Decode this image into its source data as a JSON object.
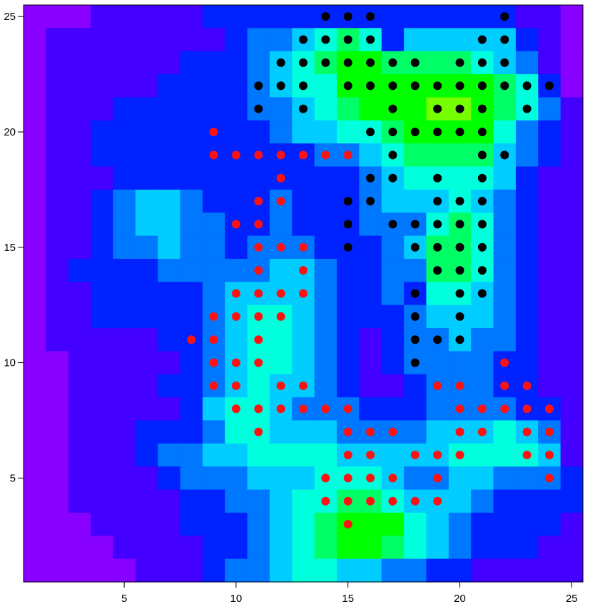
{
  "chart_data": {
    "type": "heatmap",
    "title": "",
    "xlabel": "",
    "ylabel": "",
    "xlim": [
      0.5,
      25.5
    ],
    "ylim": [
      0.5,
      25.5
    ],
    "x_ticks": [
      5,
      10,
      15,
      20,
      25
    ],
    "y_ticks": [
      5,
      10,
      15,
      20,
      25
    ],
    "x_tick_labels": [
      "5",
      "10",
      "15",
      "20",
      "25"
    ],
    "y_tick_labels": [
      "5",
      "10",
      "15",
      "20",
      "25"
    ],
    "colormap": [
      "#bb00ff",
      "#8800ff",
      "#4400ff",
      "#0022ff",
      "#0077ff",
      "#00ccff",
      "#00ffdd",
      "#00ff66",
      "#00ff00",
      "#77ff00"
    ],
    "grid": false,
    "series": [
      {
        "color": "#000000",
        "marker": "circle",
        "points": [
          [
            14,
            25
          ],
          [
            15,
            25
          ],
          [
            16,
            25
          ],
          [
            22,
            25
          ],
          [
            13,
            24
          ],
          [
            14,
            24
          ],
          [
            15,
            24
          ],
          [
            16,
            24
          ],
          [
            21,
            24
          ],
          [
            22,
            24
          ],
          [
            12,
            23
          ],
          [
            13,
            23
          ],
          [
            14,
            23
          ],
          [
            15,
            23
          ],
          [
            16,
            23
          ],
          [
            17,
            23
          ],
          [
            18,
            23
          ],
          [
            20,
            23
          ],
          [
            21,
            23
          ],
          [
            22,
            23
          ],
          [
            11,
            22
          ],
          [
            12,
            22
          ],
          [
            13,
            22
          ],
          [
            15,
            22
          ],
          [
            16,
            22
          ],
          [
            17,
            22
          ],
          [
            18,
            22
          ],
          [
            19,
            22
          ],
          [
            20,
            22
          ],
          [
            21,
            22
          ],
          [
            22,
            22
          ],
          [
            23,
            22
          ],
          [
            24,
            22
          ],
          [
            11,
            21
          ],
          [
            13,
            21
          ],
          [
            17,
            21
          ],
          [
            19,
            21
          ],
          [
            20,
            21
          ],
          [
            21,
            21
          ],
          [
            23,
            21
          ],
          [
            16,
            20
          ],
          [
            17,
            20
          ],
          [
            18,
            20
          ],
          [
            19,
            20
          ],
          [
            20,
            20
          ],
          [
            21,
            20
          ],
          [
            17,
            19
          ],
          [
            21,
            19
          ],
          [
            22,
            19
          ],
          [
            16,
            18
          ],
          [
            17,
            18
          ],
          [
            19,
            18
          ],
          [
            21,
            18
          ],
          [
            15,
            17
          ],
          [
            16,
            17
          ],
          [
            19,
            17
          ],
          [
            20,
            17
          ],
          [
            21,
            17
          ],
          [
            15,
            16
          ],
          [
            17,
            16
          ],
          [
            18,
            16
          ],
          [
            19,
            16
          ],
          [
            20,
            16
          ],
          [
            21,
            16
          ],
          [
            15,
            15
          ],
          [
            18,
            15
          ],
          [
            19,
            15
          ],
          [
            20,
            15
          ],
          [
            21,
            15
          ],
          [
            19,
            14
          ],
          [
            20,
            14
          ],
          [
            21,
            14
          ],
          [
            18,
            13
          ],
          [
            20,
            13
          ],
          [
            21,
            13
          ],
          [
            18,
            12
          ],
          [
            20,
            12
          ],
          [
            18,
            11
          ],
          [
            19,
            11
          ],
          [
            20,
            11
          ],
          [
            18,
            10
          ]
        ]
      },
      {
        "color": "#ff1111",
        "marker": "circle",
        "points": [
          [
            9,
            20
          ],
          [
            9,
            19
          ],
          [
            10,
            19
          ],
          [
            11,
            19
          ],
          [
            12,
            19
          ],
          [
            13,
            19
          ],
          [
            14,
            19
          ],
          [
            15,
            19
          ],
          [
            12,
            18
          ],
          [
            11,
            17
          ],
          [
            12,
            17
          ],
          [
            10,
            16
          ],
          [
            11,
            16
          ],
          [
            11,
            15
          ],
          [
            12,
            15
          ],
          [
            13,
            15
          ],
          [
            11,
            14
          ],
          [
            13,
            14
          ],
          [
            10,
            13
          ],
          [
            11,
            13
          ],
          [
            12,
            13
          ],
          [
            13,
            13
          ],
          [
            9,
            12
          ],
          [
            10,
            12
          ],
          [
            11,
            12
          ],
          [
            12,
            12
          ],
          [
            8,
            11
          ],
          [
            9,
            11
          ],
          [
            11,
            11
          ],
          [
            9,
            10
          ],
          [
            10,
            10
          ],
          [
            11,
            10
          ],
          [
            22,
            10
          ],
          [
            9,
            9
          ],
          [
            10,
            9
          ],
          [
            12,
            9
          ],
          [
            13,
            9
          ],
          [
            19,
            9
          ],
          [
            20,
            9
          ],
          [
            22,
            9
          ],
          [
            23,
            9
          ],
          [
            10,
            8
          ],
          [
            11,
            8
          ],
          [
            12,
            8
          ],
          [
            13,
            8
          ],
          [
            14,
            8
          ],
          [
            15,
            8
          ],
          [
            20,
            8
          ],
          [
            21,
            8
          ],
          [
            22,
            8
          ],
          [
            23,
            8
          ],
          [
            24,
            8
          ],
          [
            11,
            7
          ],
          [
            15,
            7
          ],
          [
            16,
            7
          ],
          [
            17,
            7
          ],
          [
            20,
            7
          ],
          [
            21,
            7
          ],
          [
            23,
            7
          ],
          [
            24,
            7
          ],
          [
            15,
            6
          ],
          [
            16,
            6
          ],
          [
            18,
            6
          ],
          [
            19,
            6
          ],
          [
            20,
            6
          ],
          [
            23,
            6
          ],
          [
            24,
            6
          ],
          [
            14,
            5
          ],
          [
            15,
            5
          ],
          [
            16,
            5
          ],
          [
            17,
            5
          ],
          [
            19,
            5
          ],
          [
            24,
            5
          ],
          [
            14,
            4
          ],
          [
            15,
            4
          ],
          [
            16,
            4
          ],
          [
            17,
            4
          ],
          [
            18,
            4
          ],
          [
            19,
            4
          ],
          [
            15,
            3
          ]
        ]
      }
    ],
    "heatmap_rows_top_to_bottom": [
      [
        1,
        1,
        1,
        2,
        2,
        2,
        2,
        2,
        3,
        3,
        3,
        3,
        3,
        3,
        3,
        3,
        3,
        3,
        3,
        3,
        3,
        3,
        2,
        2,
        1
      ],
      [
        1,
        2,
        2,
        2,
        2,
        2,
        2,
        2,
        2,
        3,
        4,
        4,
        5,
        6,
        7,
        6,
        3,
        5,
        5,
        5,
        5,
        5,
        3,
        2,
        1
      ],
      [
        1,
        2,
        2,
        2,
        2,
        2,
        2,
        3,
        3,
        3,
        4,
        5,
        6,
        7,
        8,
        8,
        7,
        7,
        7,
        7,
        6,
        5,
        4,
        2,
        1
      ],
      [
        1,
        2,
        2,
        2,
        2,
        2,
        3,
        3,
        3,
        3,
        4,
        5,
        6,
        6,
        8,
        8,
        8,
        8,
        8,
        8,
        8,
        7,
        6,
        3,
        1
      ],
      [
        1,
        2,
        2,
        2,
        3,
        3,
        3,
        3,
        3,
        3,
        4,
        4,
        5,
        6,
        7,
        8,
        8,
        8,
        9,
        9,
        8,
        7,
        6,
        4,
        2
      ],
      [
        1,
        2,
        2,
        3,
        3,
        3,
        3,
        3,
        3,
        3,
        3,
        4,
        5,
        5,
        6,
        6,
        7,
        8,
        8,
        8,
        8,
        6,
        4,
        3,
        2
      ],
      [
        1,
        2,
        2,
        3,
        3,
        3,
        3,
        3,
        3,
        3,
        3,
        3,
        3,
        4,
        4,
        5,
        6,
        7,
        7,
        7,
        7,
        5,
        4,
        3,
        2
      ],
      [
        1,
        2,
        2,
        2,
        3,
        3,
        3,
        3,
        3,
        3,
        3,
        3,
        3,
        3,
        3,
        4,
        5,
        6,
        6,
        6,
        6,
        5,
        3,
        2,
        2
      ],
      [
        1,
        2,
        2,
        3,
        4,
        5,
        5,
        4,
        3,
        3,
        3,
        4,
        3,
        3,
        3,
        4,
        5,
        5,
        5,
        6,
        5,
        4,
        3,
        2,
        2
      ],
      [
        1,
        2,
        2,
        3,
        4,
        5,
        5,
        4,
        4,
        3,
        3,
        4,
        3,
        3,
        3,
        4,
        4,
        4,
        6,
        7,
        6,
        4,
        3,
        2,
        2
      ],
      [
        1,
        2,
        2,
        3,
        4,
        4,
        5,
        4,
        4,
        3,
        4,
        4,
        4,
        3,
        3,
        3,
        4,
        5,
        7,
        7,
        6,
        4,
        3,
        2,
        2
      ],
      [
        1,
        2,
        3,
        3,
        3,
        3,
        4,
        4,
        4,
        4,
        4,
        5,
        5,
        4,
        3,
        3,
        4,
        4,
        7,
        7,
        6,
        4,
        3,
        2,
        2
      ],
      [
        1,
        2,
        2,
        3,
        3,
        3,
        3,
        3,
        4,
        5,
        5,
        5,
        5,
        4,
        3,
        3,
        4,
        3,
        6,
        6,
        5,
        4,
        3,
        2,
        2
      ],
      [
        1,
        2,
        2,
        3,
        3,
        3,
        3,
        3,
        4,
        5,
        6,
        6,
        5,
        4,
        3,
        3,
        3,
        4,
        5,
        5,
        5,
        4,
        3,
        2,
        2
      ],
      [
        1,
        2,
        2,
        2,
        2,
        2,
        3,
        3,
        4,
        5,
        6,
        6,
        5,
        4,
        3,
        2,
        3,
        4,
        4,
        5,
        4,
        4,
        3,
        2,
        2
      ],
      [
        1,
        1,
        2,
        2,
        2,
        2,
        2,
        3,
        4,
        5,
        6,
        6,
        5,
        4,
        3,
        2,
        3,
        4,
        4,
        4,
        4,
        3,
        3,
        2,
        2
      ],
      [
        1,
        1,
        2,
        2,
        2,
        2,
        3,
        3,
        4,
        5,
        6,
        5,
        5,
        4,
        3,
        2,
        2,
        3,
        4,
        4,
        4,
        3,
        3,
        2,
        2
      ],
      [
        1,
        1,
        2,
        2,
        2,
        2,
        2,
        3,
        5,
        6,
        6,
        5,
        4,
        4,
        4,
        3,
        3,
        3,
        4,
        4,
        4,
        4,
        3,
        3,
        2
      ],
      [
        1,
        1,
        2,
        2,
        2,
        3,
        3,
        3,
        4,
        6,
        6,
        5,
        5,
        5,
        4,
        4,
        4,
        4,
        5,
        5,
        5,
        6,
        5,
        4,
        2
      ],
      [
        1,
        1,
        2,
        2,
        2,
        3,
        4,
        4,
        5,
        5,
        6,
        6,
        6,
        6,
        5,
        5,
        5,
        5,
        5,
        6,
        6,
        6,
        6,
        5,
        2
      ],
      [
        1,
        1,
        2,
        2,
        2,
        2,
        3,
        4,
        4,
        4,
        5,
        5,
        5,
        6,
        6,
        6,
        5,
        4,
        4,
        5,
        5,
        4,
        4,
        4,
        3
      ],
      [
        1,
        1,
        2,
        2,
        2,
        2,
        2,
        3,
        3,
        4,
        4,
        5,
        6,
        6,
        7,
        7,
        6,
        5,
        5,
        5,
        4,
        3,
        3,
        3,
        3
      ],
      [
        1,
        1,
        1,
        2,
        2,
        2,
        2,
        3,
        3,
        3,
        4,
        5,
        6,
        7,
        8,
        8,
        8,
        6,
        5,
        4,
        3,
        3,
        3,
        3,
        2
      ],
      [
        1,
        1,
        1,
        1,
        2,
        2,
        2,
        2,
        3,
        3,
        4,
        5,
        6,
        7,
        8,
        8,
        7,
        6,
        5,
        4,
        3,
        3,
        3,
        2,
        2
      ],
      [
        1,
        1,
        1,
        1,
        1,
        2,
        2,
        2,
        3,
        4,
        4,
        5,
        6,
        6,
        5,
        5,
        4,
        4,
        3,
        3,
        2,
        2,
        2,
        2,
        2
      ]
    ]
  }
}
